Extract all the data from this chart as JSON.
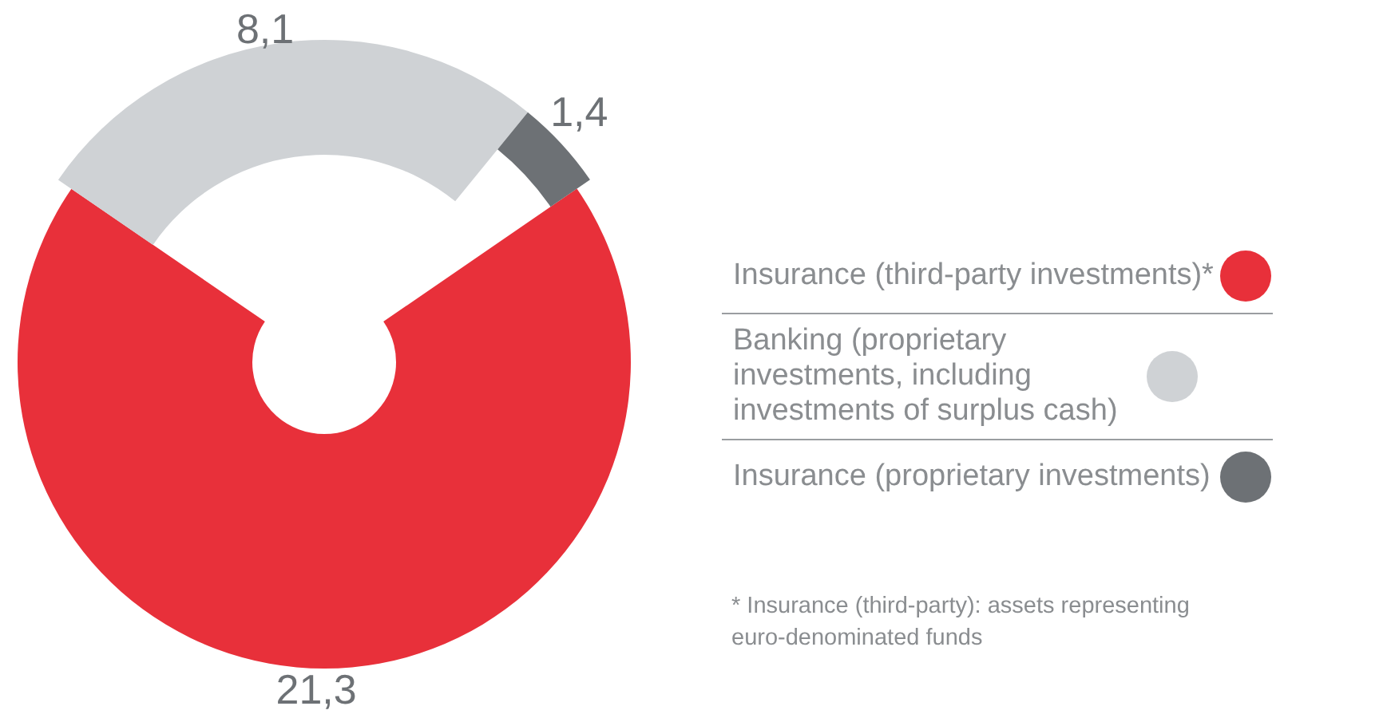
{
  "chart_data": {
    "type": "donut",
    "categories": [
      "Insurance (third-party investments)*",
      "Banking (proprietary investments, including investments of surplus cash)",
      "Insurance (proprietary investments)"
    ],
    "values": [
      21.3,
      8.1,
      1.4
    ],
    "value_labels": [
      "21,3",
      "8,1",
      "1,4"
    ],
    "colors": [
      "#e8303a",
      "#cfd2d5",
      "#6d7175"
    ],
    "legend": "right",
    "annotations": [
      "* Insurance (third-party): assets representing euro-denominated funds"
    ]
  }
}
